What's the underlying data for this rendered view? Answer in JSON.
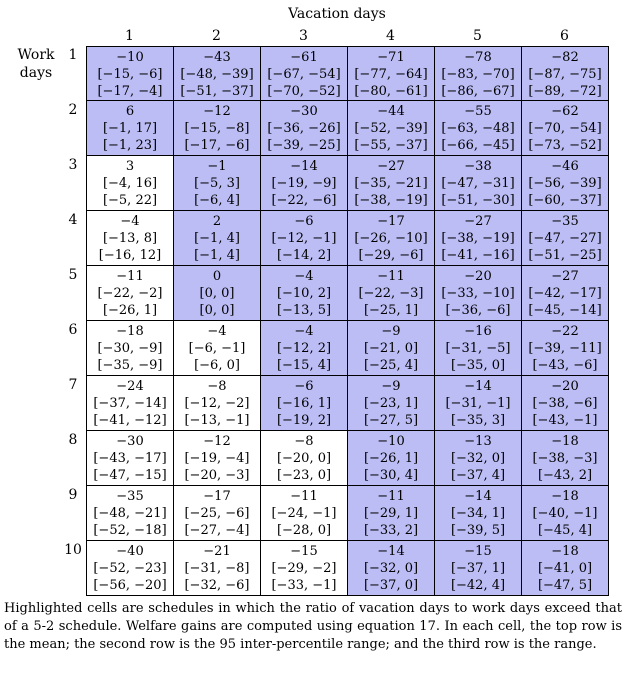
{
  "col_header": "Vacation days",
  "row_header_line1": "Work",
  "row_header_line2": "days",
  "col_labels": [
    "1",
    "2",
    "3",
    "4",
    "5",
    "6"
  ],
  "row_labels": [
    "1",
    "2",
    "3",
    "4",
    "5",
    "6",
    "7",
    "8",
    "9",
    "10"
  ],
  "highlight_color": "#bdbdf6",
  "rows": [
    [
      {
        "mean": "−10",
        "ipr": "[−15, −6]",
        "range": "[−17, −4]",
        "highlighted": true
      },
      {
        "mean": "−43",
        "ipr": "[−48, −39]",
        "range": "[−51, −37]",
        "highlighted": true
      },
      {
        "mean": "−61",
        "ipr": "[−67, −54]",
        "range": "[−70, −52]",
        "highlighted": true
      },
      {
        "mean": "−71",
        "ipr": "[−77, −64]",
        "range": "[−80, −61]",
        "highlighted": true
      },
      {
        "mean": "−78",
        "ipr": "[−83, −70]",
        "range": "[−86, −67]",
        "highlighted": true
      },
      {
        "mean": "−82",
        "ipr": "[−87, −75]",
        "range": "[−89, −72]",
        "highlighted": true
      }
    ],
    [
      {
        "mean": "6",
        "ipr": "[−1, 17]",
        "range": "[−1, 23]",
        "highlighted": true
      },
      {
        "mean": "−12",
        "ipr": "[−15, −8]",
        "range": "[−17, −6]",
        "highlighted": true
      },
      {
        "mean": "−30",
        "ipr": "[−36, −26]",
        "range": "[−39, −25]",
        "highlighted": true
      },
      {
        "mean": "−44",
        "ipr": "[−52, −39]",
        "range": "[−55, −37]",
        "highlighted": true
      },
      {
        "mean": "−55",
        "ipr": "[−63, −48]",
        "range": "[−66, −45]",
        "highlighted": true
      },
      {
        "mean": "−62",
        "ipr": "[−70, −54]",
        "range": "[−73, −52]",
        "highlighted": true
      }
    ],
    [
      {
        "mean": "3",
        "ipr": "[−4, 16]",
        "range": "[−5, 22]",
        "highlighted": false
      },
      {
        "mean": "−1",
        "ipr": "[−5, 3]",
        "range": "[−6, 4]",
        "highlighted": true
      },
      {
        "mean": "−14",
        "ipr": "[−19, −9]",
        "range": "[−22, −6]",
        "highlighted": true
      },
      {
        "mean": "−27",
        "ipr": "[−35, −21]",
        "range": "[−38, −19]",
        "highlighted": true
      },
      {
        "mean": "−38",
        "ipr": "[−47, −31]",
        "range": "[−51, −30]",
        "highlighted": true
      },
      {
        "mean": "−46",
        "ipr": "[−56, −39]",
        "range": "[−60, −37]",
        "highlighted": true
      }
    ],
    [
      {
        "mean": "−4",
        "ipr": "[−13, 8]",
        "range": "[−16, 12]",
        "highlighted": false
      },
      {
        "mean": "2",
        "ipr": "[−1, 4]",
        "range": "[−1, 4]",
        "highlighted": true
      },
      {
        "mean": "−6",
        "ipr": "[−12, −1]",
        "range": "[−14, 2]",
        "highlighted": true
      },
      {
        "mean": "−17",
        "ipr": "[−26, −10]",
        "range": "[−29, −6]",
        "highlighted": true
      },
      {
        "mean": "−27",
        "ipr": "[−38, −19]",
        "range": "[−41, −16]",
        "highlighted": true
      },
      {
        "mean": "−35",
        "ipr": "[−47, −27]",
        "range": "[−51, −25]",
        "highlighted": true
      }
    ],
    [
      {
        "mean": "−11",
        "ipr": "[−22, −2]",
        "range": "[−26, 1]",
        "highlighted": false
      },
      {
        "mean": "0",
        "ipr": "[0, 0]",
        "range": "[0, 0]",
        "highlighted": true
      },
      {
        "mean": "−4",
        "ipr": "[−10, 2]",
        "range": "[−13, 5]",
        "highlighted": true
      },
      {
        "mean": "−11",
        "ipr": "[−22, −3]",
        "range": "[−25, 1]",
        "highlighted": true
      },
      {
        "mean": "−20",
        "ipr": "[−33, −10]",
        "range": "[−36, −6]",
        "highlighted": true
      },
      {
        "mean": "−27",
        "ipr": "[−42, −17]",
        "range": "[−45, −14]",
        "highlighted": true
      }
    ],
    [
      {
        "mean": "−18",
        "ipr": "[−30, −9]",
        "range": "[−35, −9]",
        "highlighted": false
      },
      {
        "mean": "−4",
        "ipr": "[−6, −1]",
        "range": "[−6, 0]",
        "highlighted": false
      },
      {
        "mean": "−4",
        "ipr": "[−12, 2]",
        "range": "[−15, 4]",
        "highlighted": true
      },
      {
        "mean": "−9",
        "ipr": "[−21, 0]",
        "range": "[−25, 4]",
        "highlighted": true
      },
      {
        "mean": "−16",
        "ipr": "[−31, −5]",
        "range": "[−35, 0]",
        "highlighted": true
      },
      {
        "mean": "−22",
        "ipr": "[−39, −11]",
        "range": "[−43, −6]",
        "highlighted": true
      }
    ],
    [
      {
        "mean": "−24",
        "ipr": "[−37, −14]",
        "range": "[−41, −12]",
        "highlighted": false
      },
      {
        "mean": "−8",
        "ipr": "[−12, −2]",
        "range": "[−13, −1]",
        "highlighted": false
      },
      {
        "mean": "−6",
        "ipr": "[−16, 1]",
        "range": "[−19, 2]",
        "highlighted": true
      },
      {
        "mean": "−9",
        "ipr": "[−23, 1]",
        "range": "[−27, 5]",
        "highlighted": true
      },
      {
        "mean": "−14",
        "ipr": "[−31, −1]",
        "range": "[−35, 3]",
        "highlighted": true
      },
      {
        "mean": "−20",
        "ipr": "[−38, −6]",
        "range": "[−43, −1]",
        "highlighted": true
      }
    ],
    [
      {
        "mean": "−30",
        "ipr": "[−43, −17]",
        "range": "[−47, −15]",
        "highlighted": false
      },
      {
        "mean": "−12",
        "ipr": "[−19, −4]",
        "range": "[−20, −3]",
        "highlighted": false
      },
      {
        "mean": "−8",
        "ipr": "[−20, 0]",
        "range": "[−23, 0]",
        "highlighted": false
      },
      {
        "mean": "−10",
        "ipr": "[−26, 1]",
        "range": "[−30, 4]",
        "highlighted": true
      },
      {
        "mean": "−13",
        "ipr": "[−32, 0]",
        "range": "[−37, 4]",
        "highlighted": true
      },
      {
        "mean": "−18",
        "ipr": "[−38, −3]",
        "range": "[−43, 2]",
        "highlighted": true
      }
    ],
    [
      {
        "mean": "−35",
        "ipr": "[−48, −21]",
        "range": "[−52, −18]",
        "highlighted": false
      },
      {
        "mean": "−17",
        "ipr": "[−25, −6]",
        "range": "[−27, −4]",
        "highlighted": false
      },
      {
        "mean": "−11",
        "ipr": "[−24, −1]",
        "range": "[−28, 0]",
        "highlighted": false
      },
      {
        "mean": "−11",
        "ipr": "[−29, 1]",
        "range": "[−33, 2]",
        "highlighted": true
      },
      {
        "mean": "−14",
        "ipr": "[−34, 1]",
        "range": "[−39, 5]",
        "highlighted": true
      },
      {
        "mean": "−18",
        "ipr": "[−40, −1]",
        "range": "[−45, 4]",
        "highlighted": true
      }
    ],
    [
      {
        "mean": "−40",
        "ipr": "[−52, −23]",
        "range": "[−56, −20]",
        "highlighted": false
      },
      {
        "mean": "−21",
        "ipr": "[−31, −8]",
        "range": "[−32, −6]",
        "highlighted": false
      },
      {
        "mean": "−15",
        "ipr": "[−29, −2]",
        "range": "[−33, −1]",
        "highlighted": false
      },
      {
        "mean": "−14",
        "ipr": "[−32, 0]",
        "range": "[−37, 0]",
        "highlighted": true
      },
      {
        "mean": "−15",
        "ipr": "[−37, 1]",
        "range": "[−42, 4]",
        "highlighted": true
      },
      {
        "mean": "−18",
        "ipr": "[−41, 0]",
        "range": "[−47, 5]",
        "highlighted": true
      }
    ]
  ],
  "note": "Highlighted cells are schedules in which the ratio of vacation days to work days exceed that of a 5-2 schedule. Welfare gains are computed using equation 17. In each cell, the top row is the mean; the second row is the 95 inter-percentile range; and the third row is the range."
}
